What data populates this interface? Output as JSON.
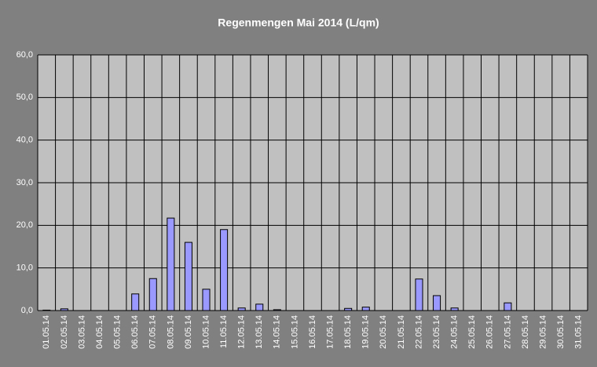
{
  "chart_data": {
    "type": "bar",
    "title": "Regenmengen Mai 2014 (L/qm)",
    "categories": [
      "01.05.14",
      "02.05.14",
      "03.05.14",
      "04.05.14",
      "05.05.14",
      "06.05.14",
      "07.05.14",
      "08.05.14",
      "09.05.14",
      "10.05.14",
      "11.05.14",
      "12.05.14",
      "13.05.14",
      "14.05.14",
      "15.05.14",
      "16.05.14",
      "17.05.14",
      "18.05.14",
      "19.05.14",
      "20.05.14",
      "21.05.14",
      "22.05.14",
      "23.05.14",
      "24.05.14",
      "25.05.14",
      "26.05.14",
      "27.05.14",
      "28.05.14",
      "29.05.14",
      "30.05.14",
      "31.05.14"
    ],
    "values": [
      0.1,
      0.4,
      0,
      0,
      0,
      3.9,
      7.5,
      21.7,
      16.0,
      5.0,
      19.0,
      0.6,
      1.5,
      0.2,
      0,
      0,
      0,
      0.5,
      0.8,
      0,
      0,
      7.4,
      3.5,
      0.6,
      0,
      0,
      1.8,
      0,
      0,
      0,
      0
    ],
    "color": "#9999ff",
    "ylim": [
      0,
      60
    ],
    "yticks": [
      {
        "value": 0,
        "label": "0,0"
      },
      {
        "value": 10,
        "label": "10,0"
      },
      {
        "value": 20,
        "label": "20,0"
      },
      {
        "value": 30,
        "label": "30,0"
      },
      {
        "value": 40,
        "label": "40,0"
      },
      {
        "value": 50,
        "label": "50,0"
      },
      {
        "value": 60,
        "label": "60,0"
      }
    ],
    "grid": true
  }
}
